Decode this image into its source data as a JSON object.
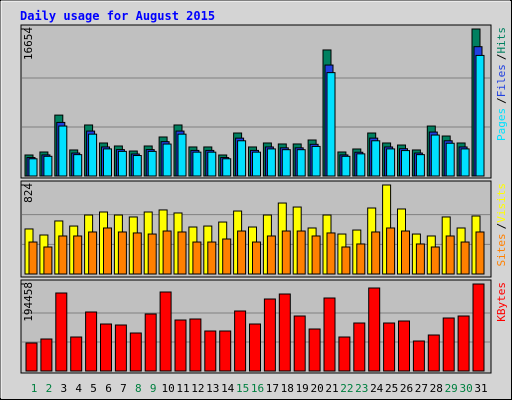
{
  "title": "Daily usage for August 2015",
  "chart_data": [
    {
      "type": "bar",
      "series": [
        {
          "name": "Hits",
          "color": "#008060",
          "values": [
            2380,
            2720,
            6900,
            2950,
            5780,
            3740,
            3400,
            2830,
            3400,
            4420,
            5780,
            3290,
            3290,
            2380,
            4870,
            3290,
            3740,
            3630,
            3630,
            4080,
            14280,
            2720,
            3060,
            4870,
            3740,
            3510,
            2950,
            5660,
            4530,
            3740,
            16654
          ]
        },
        {
          "name": "Files",
          "color": "#2040e0",
          "values": [
            2090,
            2390,
            6070,
            2600,
            5090,
            3290,
            2990,
            2490,
            2990,
            3890,
            5090,
            2900,
            2900,
            2090,
            4290,
            2900,
            3290,
            3190,
            3190,
            3590,
            12570,
            2390,
            2690,
            4290,
            3290,
            3090,
            2600,
            4980,
            3990,
            3290,
            14650
          ]
        },
        {
          "name": "Pages",
          "color": "#00e0ff",
          "values": [
            1950,
            2230,
            5660,
            2420,
            4740,
            3070,
            2790,
            2320,
            2790,
            3620,
            4740,
            2700,
            2700,
            1950,
            3990,
            2700,
            3070,
            2980,
            2980,
            3350,
            11710,
            2230,
            2510,
            3990,
            3070,
            2880,
            2420,
            4640,
            3710,
            3070,
            13660
          ]
        }
      ],
      "legend_separator": "/",
      "ylim": [
        0,
        16654
      ],
      "yticks": [
        16654
      ]
    },
    {
      "type": "bar",
      "series": [
        {
          "name": "Visits",
          "color": "#ffff00",
          "values": [
            417,
            361,
            491,
            444,
            546,
            574,
            546,
            528,
            574,
            593,
            565,
            435,
            444,
            481,
            583,
            435,
            546,
            657,
            620,
            426,
            546,
            370,
            407,
            611,
            824,
            602,
            370,
            352,
            528,
            426,
            537
          ]
        },
        {
          "name": "Sites",
          "color": "#ff8000",
          "values": [
            296,
            250,
            352,
            352,
            389,
            426,
            389,
            380,
            370,
            398,
            389,
            296,
            296,
            324,
            398,
            296,
            352,
            398,
            398,
            352,
            380,
            250,
            278,
            389,
            426,
            398,
            278,
            250,
            352,
            296,
            389
          ]
        }
      ],
      "legend_separator": "/",
      "ylim": [
        0,
        824
      ],
      "yticks": [
        824
      ]
    },
    {
      "type": "bar",
      "categories": [
        "1",
        "2",
        "3",
        "4",
        "5",
        "6",
        "7",
        "8",
        "9",
        "10",
        "11",
        "12",
        "13",
        "14",
        "15",
        "16",
        "17",
        "18",
        "19",
        "20",
        "21",
        "22",
        "23",
        "24",
        "25",
        "26",
        "27",
        "28",
        "29",
        "30",
        "31"
      ],
      "label_colors": [
        "#008040",
        "#008040",
        "#000000",
        "#000000",
        "#000000",
        "#000000",
        "#000000",
        "#008040",
        "#008040",
        "#000000",
        "#000000",
        "#000000",
        "#000000",
        "#000000",
        "#008040",
        "#008040",
        "#000000",
        "#000000",
        "#000000",
        "#000000",
        "#000000",
        "#008040",
        "#008040",
        "#000000",
        "#000000",
        "#000000",
        "#000000",
        "#000000",
        "#008040",
        "#008040",
        "#000000"
      ],
      "series": [
        {
          "name": "KBytes",
          "color": "#ff0000",
          "values": [
            62580,
            71520,
            174330,
            75990,
            131870,
            105050,
            102810,
            84930,
            127400,
            176570,
            113990,
            116220,
            89400,
            89400,
            134100,
            105050,
            160920,
            172100,
            122930,
            93870,
            163160,
            75990,
            107280,
            185510,
            107280,
            111750,
            67050,
            80460,
            118460,
            122930,
            194458
          ]
        }
      ],
      "ylim": [
        0,
        194458
      ],
      "yticks": [
        194458
      ]
    }
  ]
}
